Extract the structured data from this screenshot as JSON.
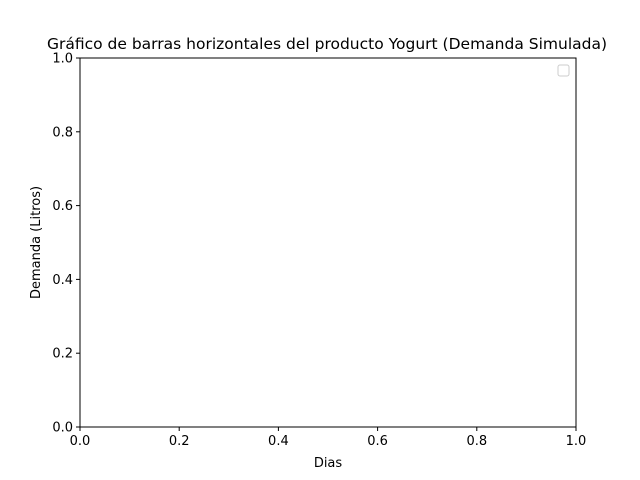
{
  "chart_data": {
    "type": "bar",
    "title": "Gráfico de barras horizontales del producto Yogurt (Demanda Simulada)",
    "xlabel": "Dias",
    "ylabel": "Demanda (Litros)",
    "xlim": [
      0,
      1
    ],
    "ylim": [
      0,
      1
    ],
    "xticks": [
      "0.0",
      "0.2",
      "0.4",
      "0.6",
      "0.8",
      "1.0"
    ],
    "yticks": [
      "0.0",
      "0.2",
      "0.4",
      "0.6",
      "0.8",
      "1.0"
    ],
    "series": [],
    "legend": "top-right",
    "grid": false
  }
}
